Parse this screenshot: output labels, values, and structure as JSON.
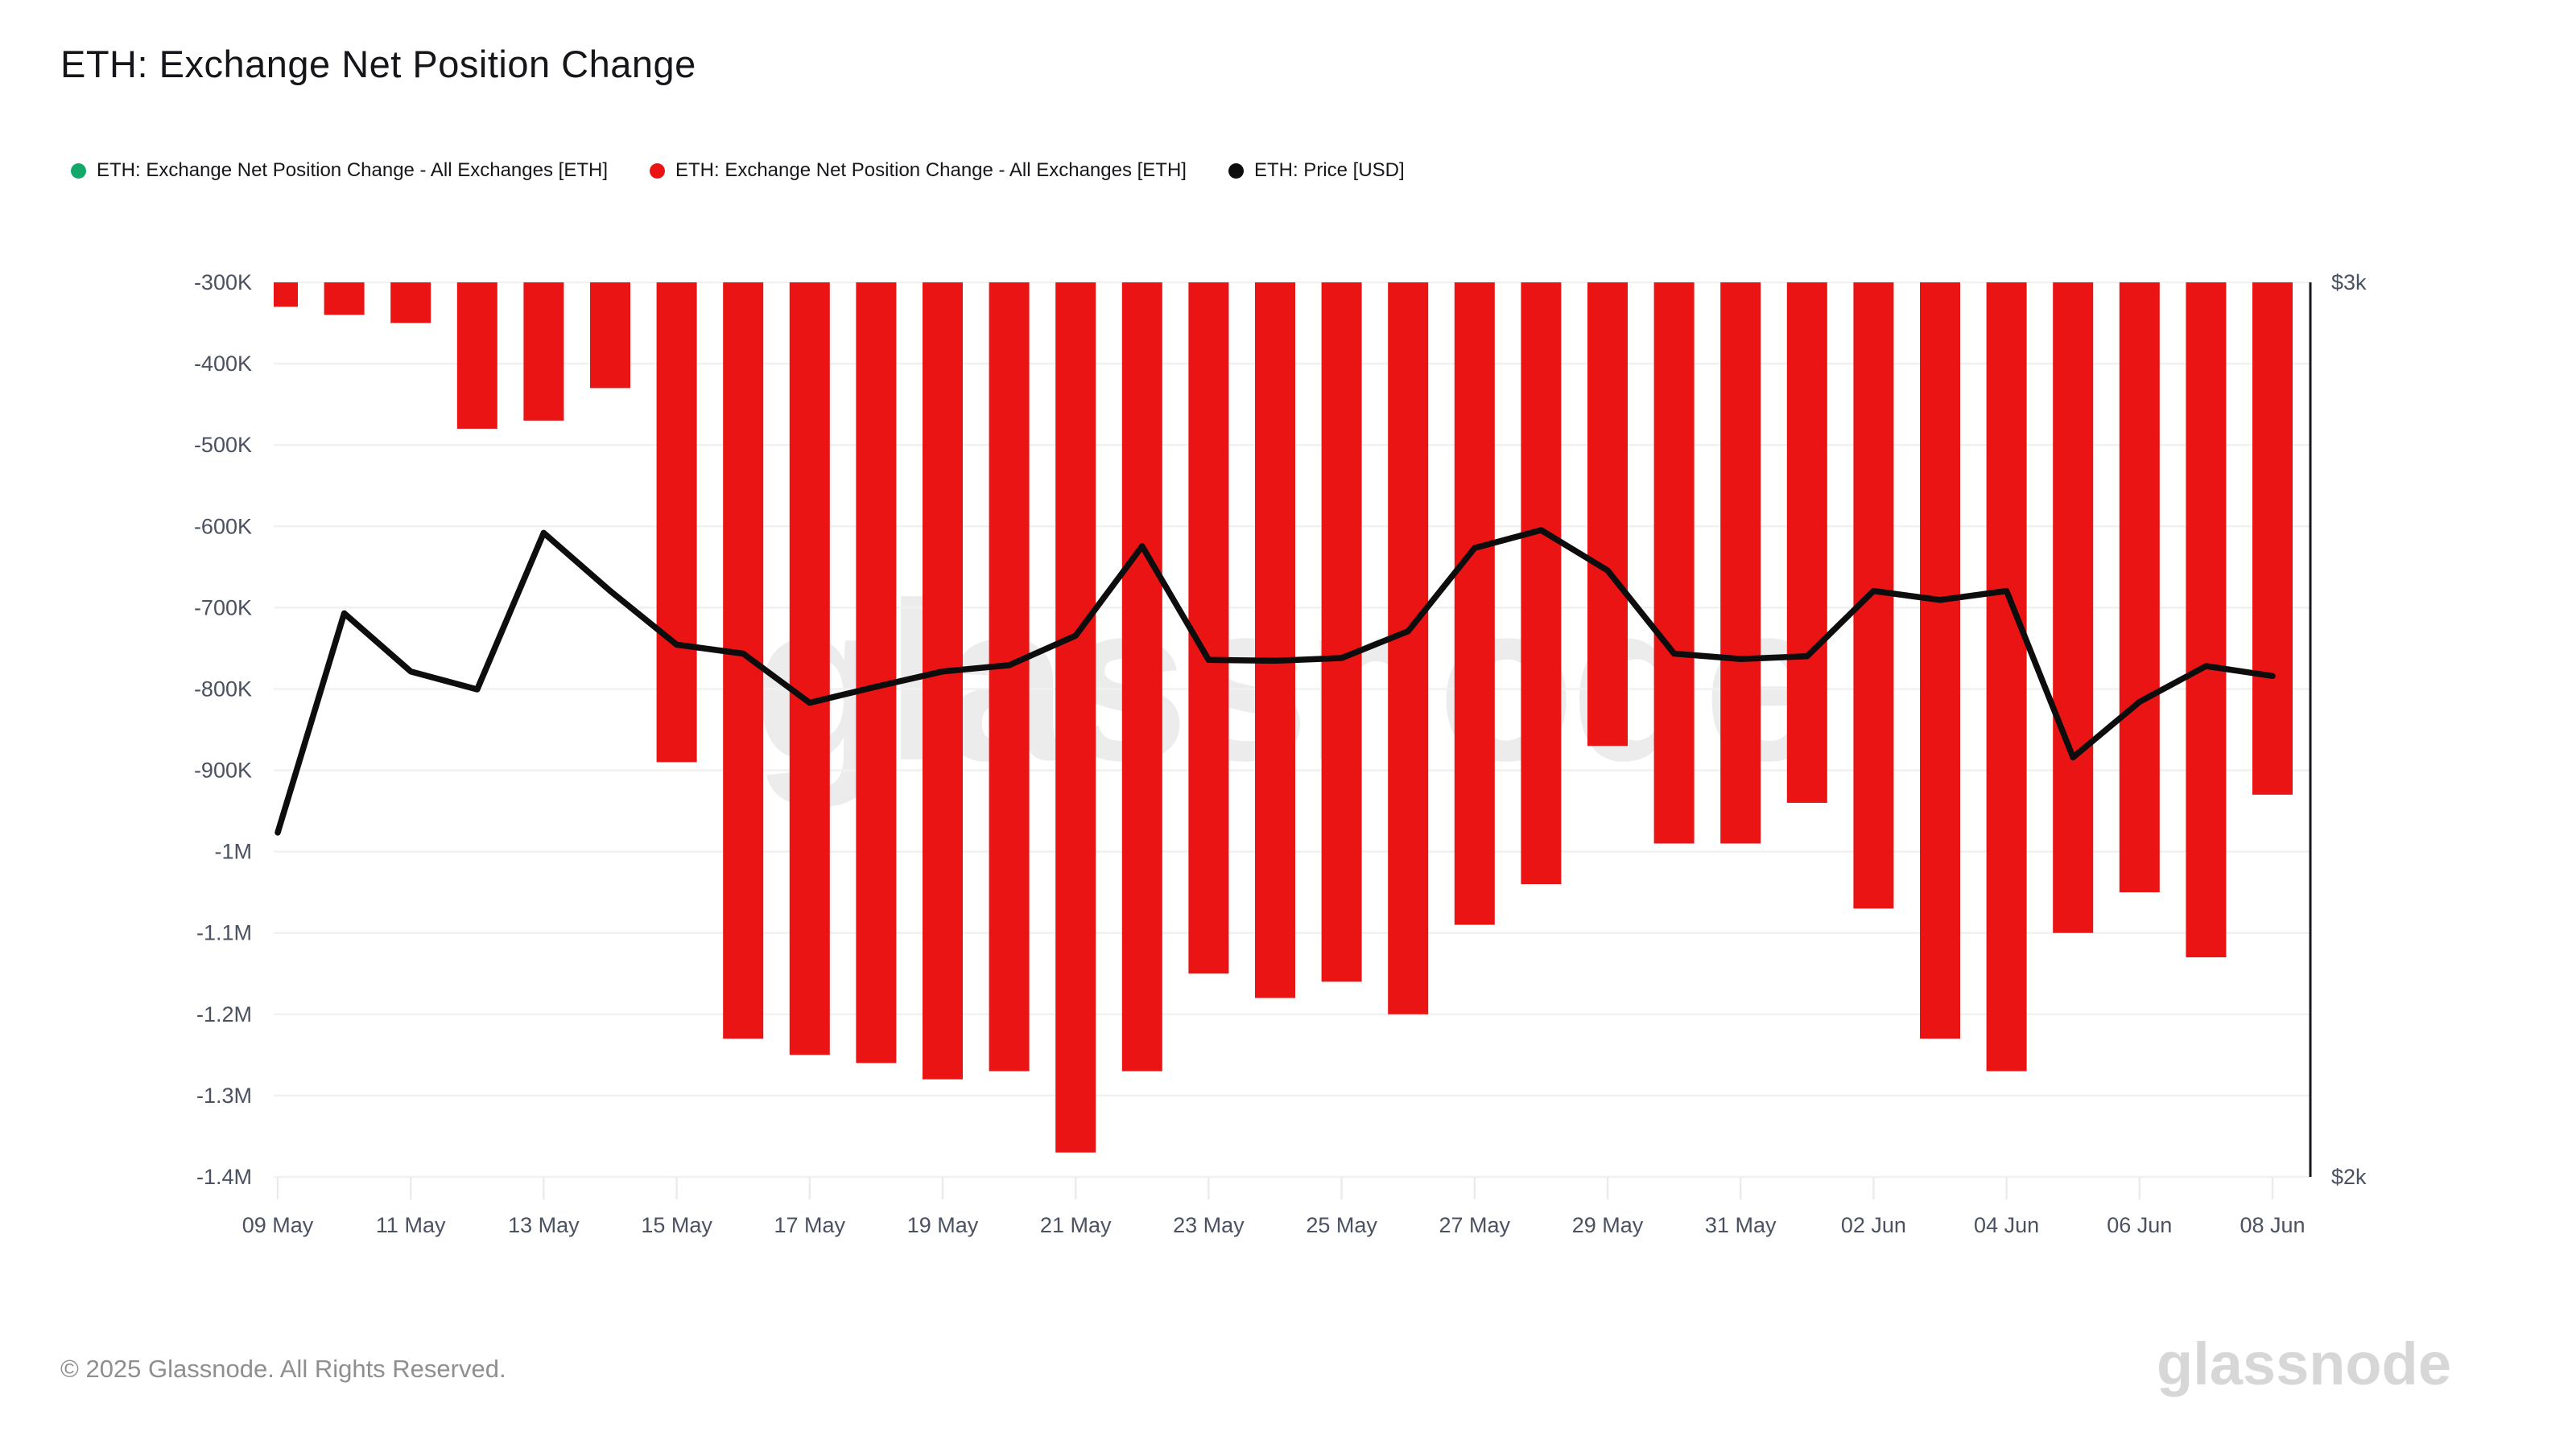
{
  "header": {
    "title": "ETH: Exchange Net Position Change"
  },
  "legend": {
    "items": [
      {
        "label": "ETH: Exchange Net Position Change - All Exchanges [ETH]",
        "color": "#14a76a"
      },
      {
        "label": "ETH: Exchange Net Position Change - All Exchanges [ETH]",
        "color": "#ea1414"
      },
      {
        "label": "ETH: Price [USD]",
        "color": "#0d0d0d"
      }
    ]
  },
  "watermark": {
    "text": "glassnode"
  },
  "footer": {
    "copyright": "© 2025 Glassnode. All Rights Reserved.",
    "logo": "glassnode"
  },
  "colors": {
    "bar_negative": "#ea1414",
    "bar_positive": "#14a76a",
    "price_line": "#0d0d0d",
    "gridline": "#f1f1f1",
    "tick_stub": "#e9ebed",
    "axis_line": "#16181d",
    "tick_label": "#4a5160"
  },
  "chart_data": {
    "type": "mixed",
    "title": "ETH: Exchange Net Position Change",
    "grid": true,
    "legend_position": "top",
    "x": [
      "09 May",
      "10 May",
      "11 May",
      "12 May",
      "13 May",
      "14 May",
      "15 May",
      "16 May",
      "17 May",
      "18 May",
      "19 May",
      "20 May",
      "21 May",
      "22 May",
      "23 May",
      "24 May",
      "25 May",
      "26 May",
      "27 May",
      "28 May",
      "29 May",
      "30 May",
      "31 May",
      "01 Jun",
      "02 Jun",
      "03 Jun",
      "04 Jun",
      "05 Jun",
      "06 Jun",
      "07 Jun",
      "08 Jun"
    ],
    "x_tick_labels": [
      "09 May",
      "11 May",
      "13 May",
      "15 May",
      "17 May",
      "19 May",
      "21 May",
      "23 May",
      "25 May",
      "27 May",
      "29 May",
      "31 May",
      "02 Jun",
      "04 Jun",
      "06 Jun",
      "08 Jun"
    ],
    "y_left": {
      "tick_labels": [
        "-300K",
        "-400K",
        "-500K",
        "-600K",
        "-700K",
        "-800K",
        "-900K",
        "-1M",
        "-1.1M",
        "-1.2M",
        "-1.3M",
        "-1.4M"
      ],
      "tick_values": [
        -300000,
        -400000,
        -500000,
        -600000,
        -700000,
        -800000,
        -900000,
        -1000000,
        -1100000,
        -1200000,
        -1300000,
        -1400000
      ],
      "range": [
        -1400000,
        -300000
      ]
    },
    "y_right": {
      "tick_labels": [
        "$3k",
        "$2k"
      ],
      "tick_values": [
        3000,
        2000
      ],
      "range": [
        2000,
        3000
      ]
    },
    "series": [
      {
        "name": "ETH: Exchange Net Position Change - All Exchanges [ETH]",
        "type": "bar",
        "axis": "left",
        "color": "#14a76a",
        "values": []
      },
      {
        "name": "ETH: Exchange Net Position Change - All Exchanges [ETH]",
        "type": "bar",
        "axis": "left",
        "color": "#ea1414",
        "values": [
          -330000,
          -340000,
          -350000,
          -480000,
          -470000,
          -430000,
          -890000,
          -1230000,
          -1250000,
          -1260000,
          -1280000,
          -1270000,
          -1370000,
          -1270000,
          -1150000,
          -1180000,
          -1160000,
          -1200000,
          -1090000,
          -1040000,
          -870000,
          -990000,
          -990000,
          -940000,
          -1070000,
          -1230000,
          -1270000,
          -1100000,
          -1050000,
          -1130000,
          -930000
        ]
      },
      {
        "name": "ETH: Price [USD]",
        "type": "line",
        "axis": "right",
        "color": "#0d0d0d",
        "values": [
          2385,
          2630,
          2565,
          2545,
          2720,
          2655,
          2595,
          2585,
          2530,
          2548,
          2565,
          2572,
          2605,
          2705,
          2578,
          2577,
          2580,
          2610,
          2703,
          2723,
          2678,
          2585,
          2579,
          2582,
          2655,
          2645,
          2655,
          2469,
          2531,
          2571,
          2560
        ]
      }
    ]
  }
}
